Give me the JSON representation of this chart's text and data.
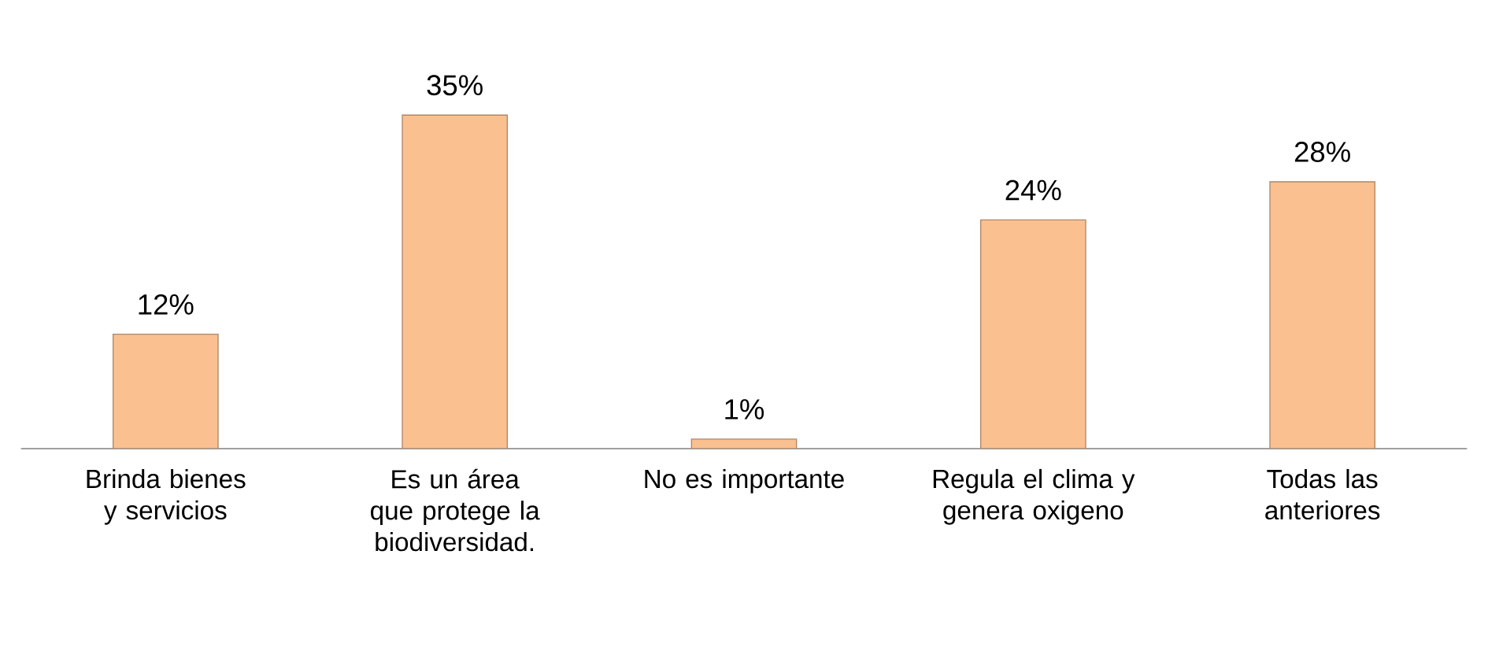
{
  "chart_data": {
    "type": "bar",
    "categories": [
      "Brinda bienes y servicios",
      "Es un área que protege la biodiversidad.",
      "No es importante",
      "Regula el clima y genera oxigeno",
      "Todas las anteriores"
    ],
    "values": [
      12,
      35,
      1,
      24,
      28
    ],
    "value_labels": [
      "12%",
      "35%",
      "1%",
      "24%",
      "28%"
    ],
    "color": "#fac090"
  }
}
